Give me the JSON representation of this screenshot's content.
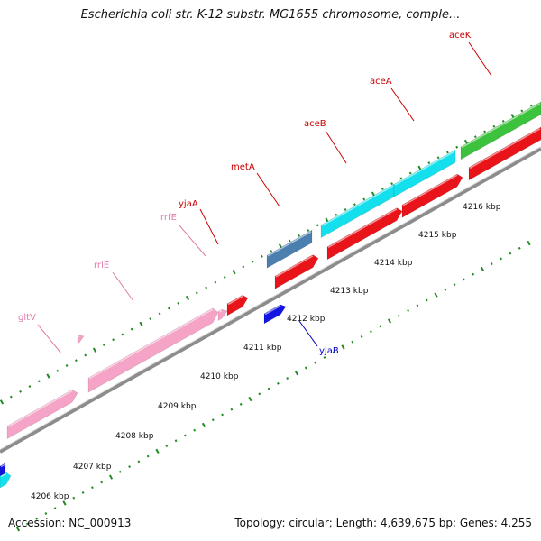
{
  "title": "Escherichia coli str. K-12 substr. MG1655 chromosome, comple...",
  "accession": "Accession: NC_000913",
  "stats": "Topology: circular; Length: 4,639,675 bp; Genes: 4,255",
  "colors": {
    "backbone": "#8c8c8c",
    "tick": "#1f8a1f",
    "rRNA": "#f5a3c7",
    "red_feature": "#e8141a",
    "cyan_feature": "#13e0ec",
    "green_feature": "#3cc23c",
    "steelblue_feature": "#4a7fb0",
    "blue_feature": "#1414e0",
    "label_red": "#cc0000",
    "label_pink": "#e07aaa",
    "label_blue": "#0000cc"
  },
  "tick_labels": [
    "4206 kbp",
    "4207 kbp",
    "4208 kbp",
    "4209 kbp",
    "4210 kbp",
    "4211 kbp",
    "4212 kbp",
    "4213 kbp",
    "4214 kbp",
    "4215 kbp",
    "4216 kbp"
  ],
  "gene_labels": [
    {
      "text": "gltV",
      "color": "pink"
    },
    {
      "text": "rrlE",
      "color": "pink"
    },
    {
      "text": "rrfE",
      "color": "pink"
    },
    {
      "text": "yjaA",
      "color": "red"
    },
    {
      "text": "metA",
      "color": "red"
    },
    {
      "text": "aceB",
      "color": "red"
    },
    {
      "text": "aceA",
      "color": "red"
    },
    {
      "text": "aceK",
      "color": "red"
    },
    {
      "text": "yjaB",
      "color": "blue"
    }
  ]
}
